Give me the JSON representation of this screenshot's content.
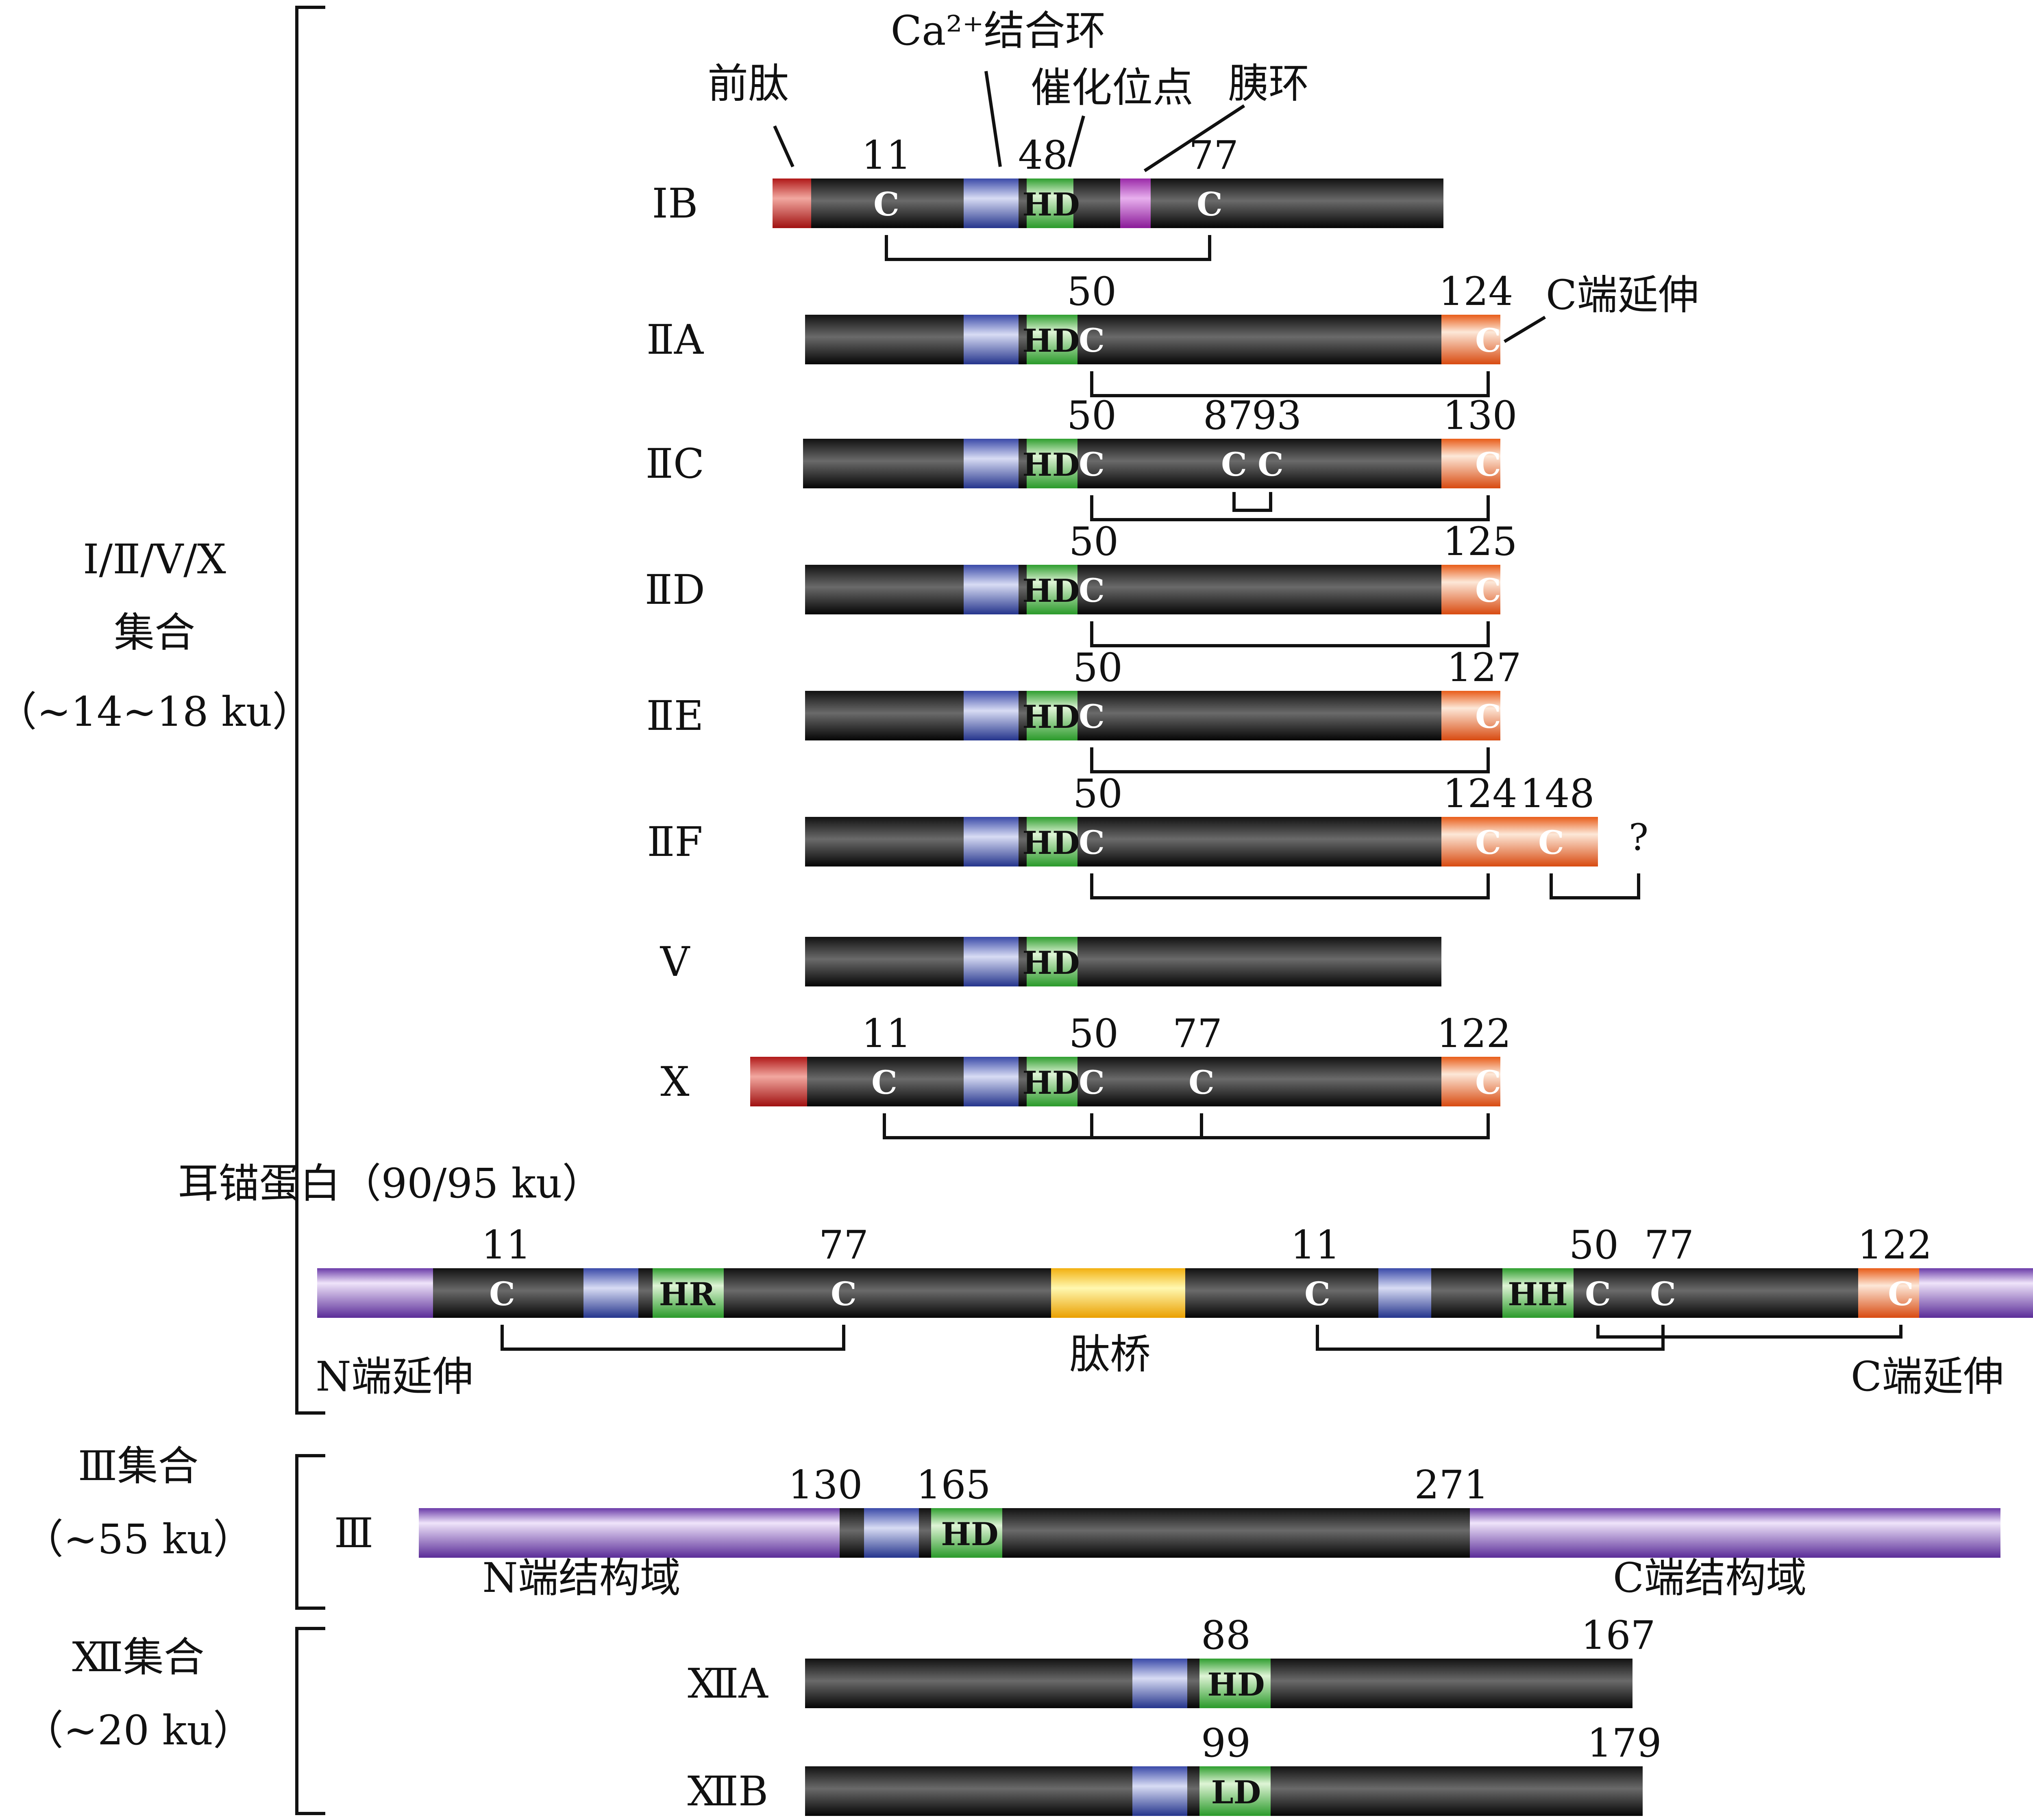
{
  "groups": {
    "g1": {
      "line1": "Ⅰ/Ⅱ/Ⅴ/Ⅹ",
      "line2": "集合",
      "line3": "（~14~18 ku）"
    },
    "g2": {
      "line1": "Ⅲ集合",
      "line2": "（~55 ku）"
    },
    "g3": {
      "line1": "Ⅻ集合",
      "line2": "（~20 ku）"
    }
  },
  "annotations": {
    "propeptide": "前肽",
    "ca_loop": "Ca²⁺结合环",
    "catalytic_site": "催化位点",
    "pancreatic_loop": "胰环",
    "c_ext": "C端延伸",
    "unknown": "?"
  },
  "rows": [
    {
      "id": "IB",
      "label": "ⅠB",
      "numbers": [
        "11",
        "48",
        "77"
      ]
    },
    {
      "id": "IIA",
      "label": "ⅡA",
      "numbers": [
        "50",
        "124"
      ]
    },
    {
      "id": "IIC",
      "label": "ⅡC",
      "numbers": [
        "50",
        "87",
        "93",
        "130"
      ]
    },
    {
      "id": "IID",
      "label": "ⅡD",
      "numbers": [
        "50",
        "125"
      ]
    },
    {
      "id": "IIE",
      "label": "ⅡE",
      "numbers": [
        "50",
        "127"
      ]
    },
    {
      "id": "IIF",
      "label": "ⅡF",
      "numbers": [
        "50",
        "124",
        "148"
      ]
    },
    {
      "id": "V",
      "label": "Ⅴ",
      "numbers": []
    },
    {
      "id": "X",
      "label": "Ⅹ",
      "numbers": [
        "11",
        "50",
        "77",
        "122"
      ]
    }
  ],
  "otoconin": {
    "title": "耳锚蛋白（90/95 ku）",
    "numbers": [
      "11",
      "77",
      "11",
      "50",
      "77",
      "122"
    ],
    "n_ext": "N端延伸",
    "bridge": "肽桥",
    "c_ext": "C端延伸"
  },
  "group3_row": {
    "label": "Ⅲ",
    "numbers": [
      "130",
      "165",
      "271"
    ],
    "n_domain": "N端结构域",
    "c_domain": "C端结构域"
  },
  "group12": [
    {
      "label": "ⅫA",
      "numbers": [
        "88",
        "167"
      ]
    },
    {
      "label": "ⅫB",
      "numbers": [
        "99",
        "179"
      ]
    }
  ],
  "domain_labels": {
    "HD": "HD",
    "HR": "HR",
    "HH": "HH",
    "LD": "LD",
    "C": "C"
  },
  "colors": {
    "backbone": "#1a1a1a",
    "propeptide": "#e02020",
    "ca_loop": "#4a5fc0",
    "catalytic": "#3cb43c",
    "pancreatic_loop": "#b040c0",
    "c_ext": "#ee6a20",
    "bridge": "#f2cc20",
    "terminal_domain": "#7a48b8"
  }
}
